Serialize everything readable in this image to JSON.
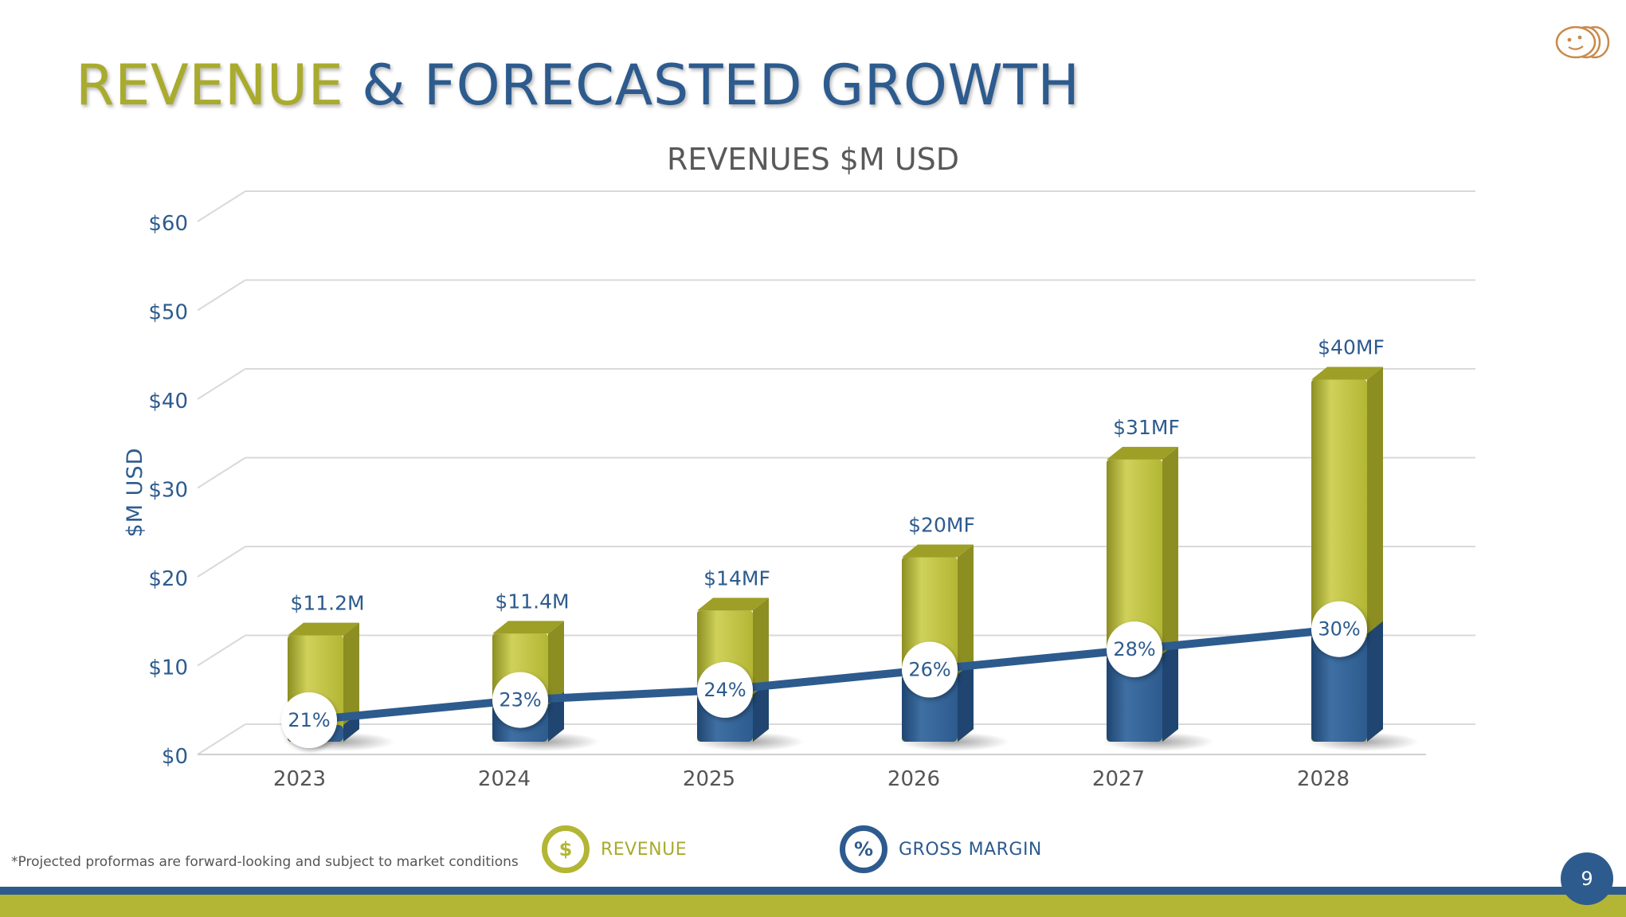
{
  "slide": {
    "title_part1": "REVENUE",
    "title_part2": " & FORECASTED GROWTH",
    "footnote": "*Projected proformas are forward-looking and subject to market conditions",
    "page_number": "9",
    "logo_icon": "coins-logo-icon"
  },
  "colors": {
    "olive": "#b3b634",
    "olive_dark": "#8c8e22",
    "olive_light": "#cfd15a",
    "blue": "#2d5b8e",
    "blue_dark": "#1f4570",
    "label_blue": "#2d5b8e"
  },
  "legend": {
    "revenue_symbol": "$",
    "revenue_label": "REVENUE",
    "margin_symbol": "%",
    "margin_label": "GROSS MARGIN"
  },
  "chart_data": {
    "type": "bar",
    "title": "REVENUES $M USD",
    "ylabel": "$M USD",
    "xlabel": "",
    "ylim": [
      0,
      60
    ],
    "yticks": [
      0,
      10,
      20,
      30,
      40,
      50,
      60
    ],
    "ytick_labels": [
      "$0",
      "$10",
      "$20",
      "$30",
      "$40",
      "$50",
      "$60"
    ],
    "categories": [
      "2023",
      "2024",
      "2025",
      "2026",
      "2027",
      "2028"
    ],
    "series": [
      {
        "name": "REVENUE",
        "values": [
          11.2,
          11.4,
          14,
          20,
          31,
          40
        ],
        "data_labels": [
          "$11.2M",
          "$11.4M",
          "$14MF",
          "$20MF",
          "$31MF",
          "$40MF"
        ]
      },
      {
        "name": "GROSS MARGIN",
        "values": [
          21,
          23,
          24,
          26,
          28,
          30
        ],
        "data_labels": [
          "21%",
          "23%",
          "24%",
          "26%",
          "28%",
          "30%"
        ]
      }
    ],
    "legend_position": "bottom",
    "grid": true
  }
}
